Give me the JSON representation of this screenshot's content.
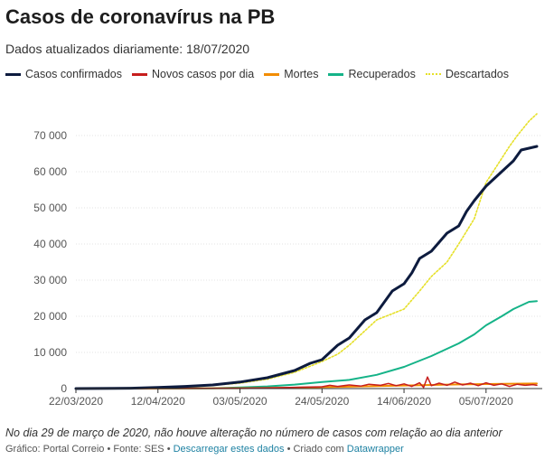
{
  "header": {
    "title": "Casos de coronavírus na PB",
    "subtitle": "Dados atualizados diariamente: 18/07/2020"
  },
  "legend": [
    {
      "label": "Casos confirmados",
      "color": "#0d1b3e",
      "style": "solid"
    },
    {
      "label": "Novos casos por dia",
      "color": "#c71e1d",
      "style": "solid"
    },
    {
      "label": "Mortes",
      "color": "#f28c00",
      "style": "solid"
    },
    {
      "label": "Recuperados",
      "color": "#15b388",
      "style": "solid"
    },
    {
      "label": "Descartados",
      "color": "#e6e029",
      "style": "dotted"
    }
  ],
  "notes": {
    "note": "No dia 29 de março de 2020, não houve alteração no número de casos com relação ao dia anterior",
    "footer_prefix": "Gráfico: Portal Correio • Fonte: SES • ",
    "footer_download": "Descarregar estes dados",
    "footer_middle": " • Criado com ",
    "footer_tool": "Datawrapper"
  },
  "chart_data": {
    "type": "line",
    "title": "Casos de coronavírus na PB",
    "xlabel": "",
    "ylabel": "",
    "x_day_range": [
      0,
      118
    ],
    "x_ticks": [
      {
        "day": 0,
        "label": "22/03/2020"
      },
      {
        "day": 21,
        "label": "12/04/2020"
      },
      {
        "day": 42,
        "label": "03/05/2020"
      },
      {
        "day": 63,
        "label": "24/05/2020"
      },
      {
        "day": 84,
        "label": "14/06/2020"
      },
      {
        "day": 105,
        "label": "05/07/2020"
      }
    ],
    "ylim": [
      0,
      75000
    ],
    "y_ticks": [
      {
        "value": 0,
        "label": "0"
      },
      {
        "value": 10000,
        "label": "10 000"
      },
      {
        "value": 20000,
        "label": "20 000"
      },
      {
        "value": 30000,
        "label": "30 000"
      },
      {
        "value": 40000,
        "label": "40 000"
      },
      {
        "value": 50000,
        "label": "50 000"
      },
      {
        "value": 60000,
        "label": "60 000"
      },
      {
        "value": 70000,
        "label": "70 000"
      }
    ],
    "series": [
      {
        "name": "Descartados",
        "color": "#e6e029",
        "dash": "2,2",
        "width": 1.6,
        "points": [
          [
            0,
            0
          ],
          [
            14,
            200
          ],
          [
            21,
            400
          ],
          [
            35,
            900
          ],
          [
            42,
            1500
          ],
          [
            49,
            2600
          ],
          [
            56,
            4500
          ],
          [
            60,
            6200
          ],
          [
            63,
            7500
          ],
          [
            67,
            9500
          ],
          [
            70,
            12000
          ],
          [
            74,
            16000
          ],
          [
            77,
            19000
          ],
          [
            84,
            22000
          ],
          [
            88,
            27000
          ],
          [
            91,
            31000
          ],
          [
            95,
            35000
          ],
          [
            98,
            40000
          ],
          [
            102,
            47000
          ],
          [
            105,
            57000
          ],
          [
            108,
            62000
          ],
          [
            111,
            67000
          ],
          [
            113,
            70000
          ],
          [
            116,
            74000
          ],
          [
            118,
            76000
          ]
        ]
      },
      {
        "name": "Recuperados",
        "color": "#15b388",
        "dash": "",
        "width": 2,
        "points": [
          [
            0,
            0
          ],
          [
            35,
            100
          ],
          [
            42,
            300
          ],
          [
            49,
            600
          ],
          [
            56,
            1100
          ],
          [
            63,
            1800
          ],
          [
            70,
            2400
          ],
          [
            77,
            3800
          ],
          [
            84,
            6000
          ],
          [
            91,
            9000
          ],
          [
            95,
            11000
          ],
          [
            98,
            12500
          ],
          [
            102,
            15000
          ],
          [
            105,
            17500
          ],
          [
            109,
            20000
          ],
          [
            112,
            22000
          ],
          [
            116,
            24000
          ],
          [
            118,
            24200
          ]
        ]
      },
      {
        "name": "Mortes",
        "color": "#f28c00",
        "dash": "",
        "width": 2,
        "points": [
          [
            0,
            0
          ],
          [
            21,
            30
          ],
          [
            42,
            100
          ],
          [
            56,
            250
          ],
          [
            63,
            400
          ],
          [
            70,
            520
          ],
          [
            77,
            680
          ],
          [
            84,
            850
          ],
          [
            91,
            1000
          ],
          [
            98,
            1150
          ],
          [
            105,
            1260
          ],
          [
            112,
            1350
          ],
          [
            118,
            1410
          ]
        ]
      },
      {
        "name": "Novos casos por dia",
        "color": "#c71e1d",
        "dash": "",
        "width": 1.5,
        "points": [
          [
            0,
            0
          ],
          [
            21,
            15
          ],
          [
            35,
            50
          ],
          [
            42,
            100
          ],
          [
            49,
            200
          ],
          [
            56,
            350
          ],
          [
            60,
            450
          ],
          [
            63,
            500
          ],
          [
            65,
            900
          ],
          [
            67,
            600
          ],
          [
            70,
            1000
          ],
          [
            73,
            700
          ],
          [
            75,
            1200
          ],
          [
            78,
            900
          ],
          [
            80,
            1400
          ],
          [
            82,
            800
          ],
          [
            84,
            1300
          ],
          [
            86,
            600
          ],
          [
            88,
            1600
          ],
          [
            89,
            300
          ],
          [
            90,
            3200
          ],
          [
            91,
            800
          ],
          [
            93,
            1500
          ],
          [
            95,
            900
          ],
          [
            97,
            1800
          ],
          [
            99,
            1000
          ],
          [
            101,
            1500
          ],
          [
            103,
            800
          ],
          [
            105,
            1600
          ],
          [
            107,
            900
          ],
          [
            109,
            1300
          ],
          [
            111,
            600
          ],
          [
            113,
            1200
          ],
          [
            115,
            900
          ],
          [
            117,
            1100
          ],
          [
            118,
            900
          ]
        ]
      },
      {
        "name": "Casos confirmados",
        "color": "#0d1b3e",
        "dash": "",
        "width": 3,
        "points": [
          [
            0,
            0
          ],
          [
            14,
            100
          ],
          [
            21,
            300
          ],
          [
            28,
            600
          ],
          [
            35,
            1000
          ],
          [
            42,
            1800
          ],
          [
            49,
            3000
          ],
          [
            56,
            5000
          ],
          [
            60,
            7000
          ],
          [
            63,
            8000
          ],
          [
            67,
            12000
          ],
          [
            70,
            14000
          ],
          [
            74,
            19000
          ],
          [
            77,
            21000
          ],
          [
            81,
            27000
          ],
          [
            84,
            29000
          ],
          [
            86,
            32000
          ],
          [
            88,
            36000
          ],
          [
            91,
            38000
          ],
          [
            95,
            43000
          ],
          [
            98,
            45000
          ],
          [
            100,
            49000
          ],
          [
            102,
            52000
          ],
          [
            105,
            56000
          ],
          [
            109,
            60000
          ],
          [
            112,
            63000
          ],
          [
            114,
            66000
          ],
          [
            118,
            67000
          ]
        ]
      }
    ]
  }
}
